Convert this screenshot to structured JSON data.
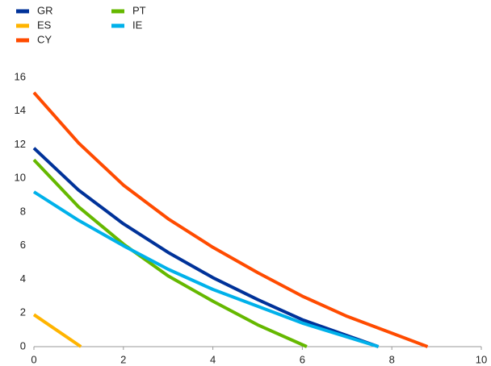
{
  "chart_data": {
    "type": "line",
    "series": [
      {
        "name": "GR",
        "color": "#003299",
        "x": [
          0,
          1,
          2,
          3,
          4,
          5,
          6,
          7.7
        ],
        "values": [
          11.8,
          9.3,
          7.3,
          5.6,
          4.1,
          2.8,
          1.6,
          0
        ]
      },
      {
        "name": "ES",
        "color": "#ffb400",
        "x": [
          0,
          1.05
        ],
        "values": [
          1.9,
          0
        ]
      },
      {
        "name": "CY",
        "color": "#ff4b00",
        "x": [
          0,
          1,
          2,
          3,
          4,
          5,
          6,
          7,
          8,
          8.8
        ],
        "values": [
          15.1,
          12.1,
          9.6,
          7.6,
          5.9,
          4.4,
          3.0,
          1.8,
          0.8,
          0
        ]
      },
      {
        "name": "PT",
        "color": "#65b800",
        "x": [
          0,
          1,
          2,
          3,
          4,
          5,
          6.1
        ],
        "values": [
          11.1,
          8.3,
          6.1,
          4.2,
          2.7,
          1.3,
          0
        ]
      },
      {
        "name": "IE",
        "color": "#00b1ea",
        "x": [
          0,
          1,
          2,
          3,
          4,
          5,
          6,
          7.7
        ],
        "values": [
          9.2,
          7.5,
          6.0,
          4.6,
          3.4,
          2.4,
          1.4,
          0
        ]
      }
    ],
    "xlim": [
      0,
      10
    ],
    "xticks": [
      0,
      2,
      4,
      6,
      8,
      10
    ],
    "ylim": [
      0,
      16
    ],
    "yticks": [
      0,
      2,
      4,
      6,
      8,
      10,
      12,
      14,
      16
    ],
    "legend": "top-left",
    "grid": false
  }
}
